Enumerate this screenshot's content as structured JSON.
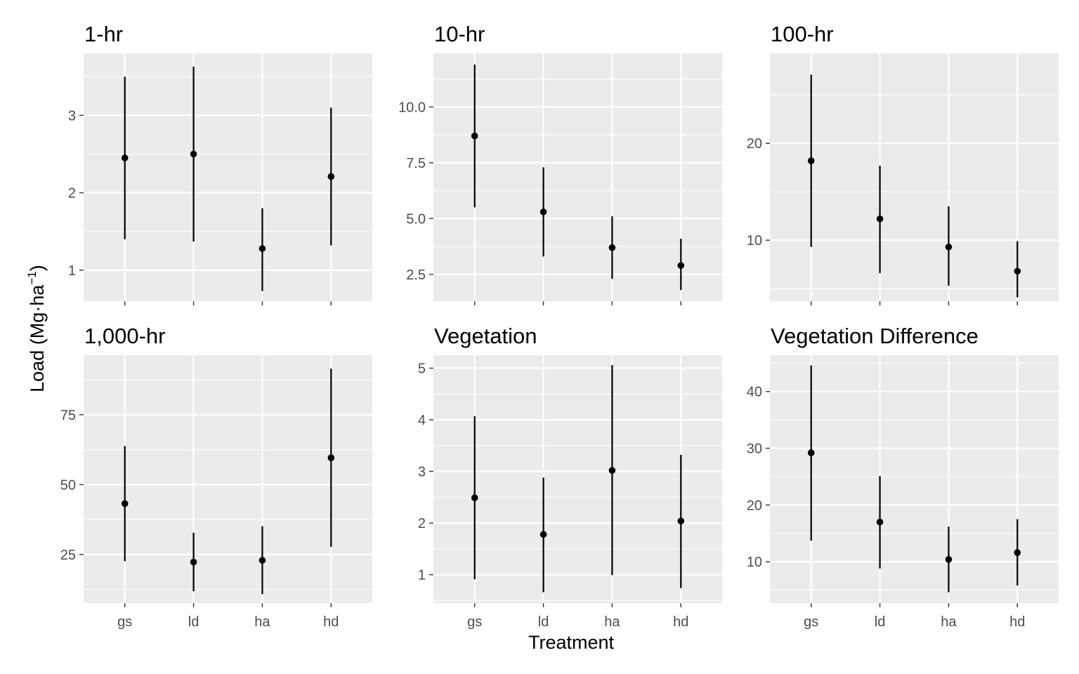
{
  "chart_data": {
    "type": "scatter",
    "style": "point-range (mean with interval), faceted 2x3, free y scales",
    "xlabel": "Treatment",
    "ylabel": {
      "prefix": "Load (Mg",
      "middle": "·ha",
      "sup": "−1",
      "suffix": ")"
    },
    "categories": [
      "gs",
      "ld",
      "ha",
      "hd"
    ],
    "grid": true,
    "panels": [
      {
        "title": "1-hr",
        "ylim": [
          0.6,
          3.8
        ],
        "yticks": [
          1,
          2,
          3
        ],
        "ytick_labels": [
          "1",
          "2",
          "3"
        ],
        "points": [
          {
            "x": "gs",
            "y": 2.45,
            "low": 1.4,
            "high": 3.5
          },
          {
            "x": "ld",
            "y": 2.5,
            "low": 1.37,
            "high": 3.63
          },
          {
            "x": "ha",
            "y": 1.28,
            "low": 0.73,
            "high": 1.8
          },
          {
            "x": "hd",
            "y": 2.21,
            "low": 1.32,
            "high": 3.1
          }
        ]
      },
      {
        "title": "10-hr",
        "ylim": [
          1.3,
          12.4
        ],
        "yticks": [
          2.5,
          5,
          7.5,
          10
        ],
        "ytick_labels": [
          "2.5",
          "5.0",
          "7.5",
          "10.0"
        ],
        "points": [
          {
            "x": "gs",
            "y": 8.7,
            "low": 5.5,
            "high": 11.9
          },
          {
            "x": "ld",
            "y": 5.3,
            "low": 3.3,
            "high": 7.3
          },
          {
            "x": "ha",
            "y": 3.7,
            "low": 2.3,
            "high": 5.1
          },
          {
            "x": "hd",
            "y": 2.9,
            "low": 1.8,
            "high": 4.1
          }
        ]
      },
      {
        "title": "100-hr",
        "ylim": [
          3.7,
          29.3
        ],
        "yticks": [
          10,
          20
        ],
        "ytick_labels": [
          "10",
          "20"
        ],
        "points": [
          {
            "x": "gs",
            "y": 18.2,
            "low": 9.3,
            "high": 27.1
          },
          {
            "x": "ld",
            "y": 12.2,
            "low": 6.6,
            "high": 17.7
          },
          {
            "x": "ha",
            "y": 9.3,
            "low": 5.3,
            "high": 13.5
          },
          {
            "x": "hd",
            "y": 6.8,
            "low": 4.1,
            "high": 9.9
          }
        ]
      },
      {
        "title": "1,000-hr",
        "ylim": [
          7.6,
          96.3
        ],
        "yticks": [
          25,
          50,
          75
        ],
        "ytick_labels": [
          "25",
          "50",
          "75"
        ],
        "points": [
          {
            "x": "gs",
            "y": 43.2,
            "low": 22.6,
            "high": 63.8
          },
          {
            "x": "ld",
            "y": 22.3,
            "low": 11.8,
            "high": 32.8
          },
          {
            "x": "ha",
            "y": 22.9,
            "low": 10.8,
            "high": 35.1
          },
          {
            "x": "hd",
            "y": 59.6,
            "low": 27.7,
            "high": 91.5
          }
        ]
      },
      {
        "title": "Vegetation",
        "ylim": [
          0.45,
          5.25
        ],
        "yticks": [
          1,
          2,
          3,
          4,
          5
        ],
        "ytick_labels": [
          "1",
          "2",
          "3",
          "4",
          "5"
        ],
        "points": [
          {
            "x": "gs",
            "y": 2.49,
            "low": 0.91,
            "high": 4.07
          },
          {
            "x": "ld",
            "y": 1.78,
            "low": 0.66,
            "high": 2.88
          },
          {
            "x": "ha",
            "y": 3.02,
            "low": 0.99,
            "high": 5.06
          },
          {
            "x": "hd",
            "y": 2.04,
            "low": 0.74,
            "high": 3.32
          }
        ]
      },
      {
        "title": "Vegetation Difference",
        "ylim": [
          2.7,
          46.4
        ],
        "yticks": [
          10,
          20,
          30,
          40
        ],
        "ytick_labels": [
          "10",
          "20",
          "30",
          "40"
        ],
        "points": [
          {
            "x": "gs",
            "y": 29.2,
            "low": 13.7,
            "high": 44.6
          },
          {
            "x": "ld",
            "y": 17.0,
            "low": 8.8,
            "high": 25.1
          },
          {
            "x": "ha",
            "y": 10.4,
            "low": 4.6,
            "high": 16.2
          },
          {
            "x": "hd",
            "y": 11.6,
            "low": 5.8,
            "high": 17.5
          }
        ]
      }
    ]
  }
}
